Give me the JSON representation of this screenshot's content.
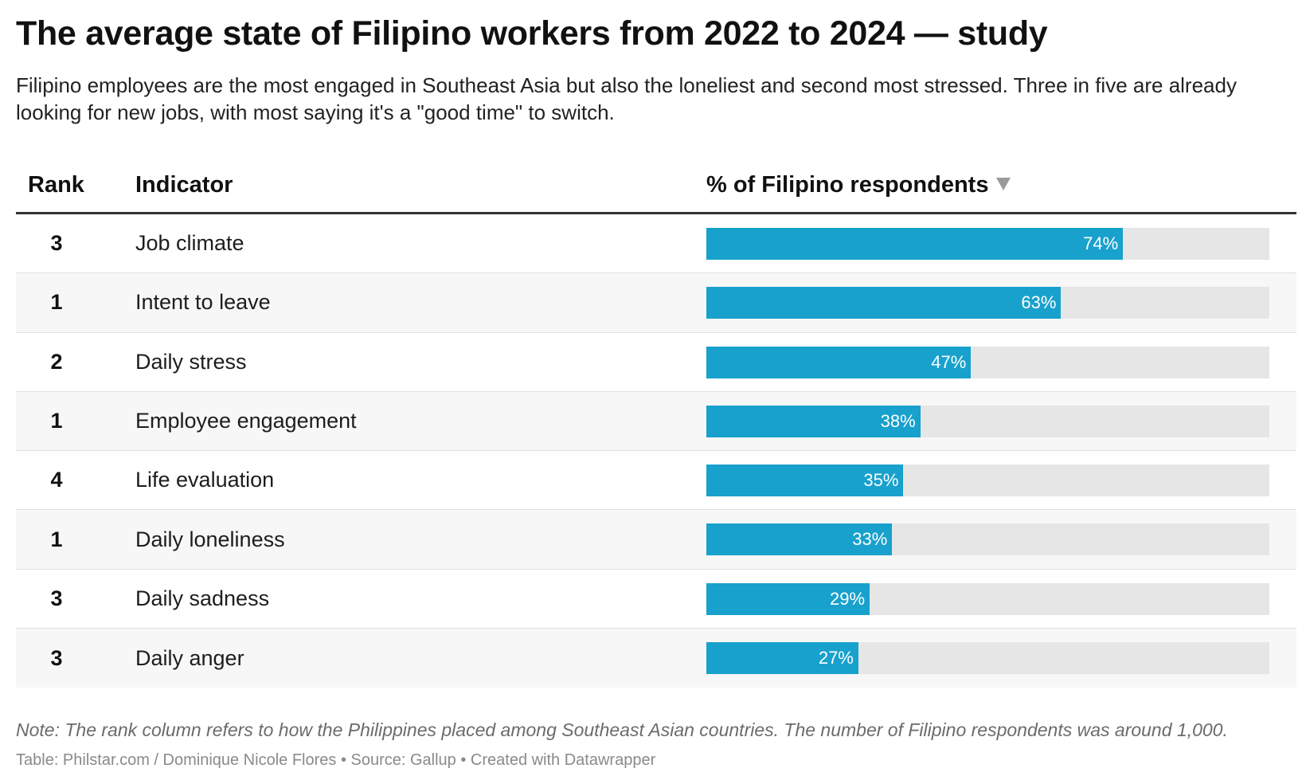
{
  "title": "The average state of Filipino workers from 2022 to 2024 — study",
  "subtitle": "Filipino employees are the most engaged in Southeast Asia but also the loneliest and second most stressed. Three in five are already looking for new jobs, with most saying it's a \"good time\" to switch.",
  "columns": {
    "rank": "Rank",
    "indicator": "Indicator",
    "percent": "% of Filipino respondents"
  },
  "sort_icon": "sort-descending-icon",
  "colors": {
    "bar": "#18a1cd",
    "track": "#e6e6e6"
  },
  "chart_data": {
    "type": "table",
    "xlim": [
      0,
      100
    ],
    "rows": [
      {
        "rank": "3",
        "indicator": "Job climate",
        "value": 74,
        "label": "74%"
      },
      {
        "rank": "1",
        "indicator": "Intent to leave",
        "value": 63,
        "label": "63%"
      },
      {
        "rank": "2",
        "indicator": "Daily stress",
        "value": 47,
        "label": "47%"
      },
      {
        "rank": "1",
        "indicator": "Employee engagement",
        "value": 38,
        "label": "38%"
      },
      {
        "rank": "4",
        "indicator": "Life evaluation",
        "value": 35,
        "label": "35%"
      },
      {
        "rank": "1",
        "indicator": "Daily loneliness",
        "value": 33,
        "label": "33%"
      },
      {
        "rank": "3",
        "indicator": "Daily sadness",
        "value": 29,
        "label": "29%"
      },
      {
        "rank": "3",
        "indicator": "Daily anger",
        "value": 27,
        "label": "27%"
      }
    ]
  },
  "note": "Note: The rank column refers to how the Philippines placed among Southeast Asian countries. The number of Filipino respondents was around 1,000.",
  "source": "Table: Philstar.com / Dominique Nicole Flores • Source: Gallup • Created with Datawrapper"
}
